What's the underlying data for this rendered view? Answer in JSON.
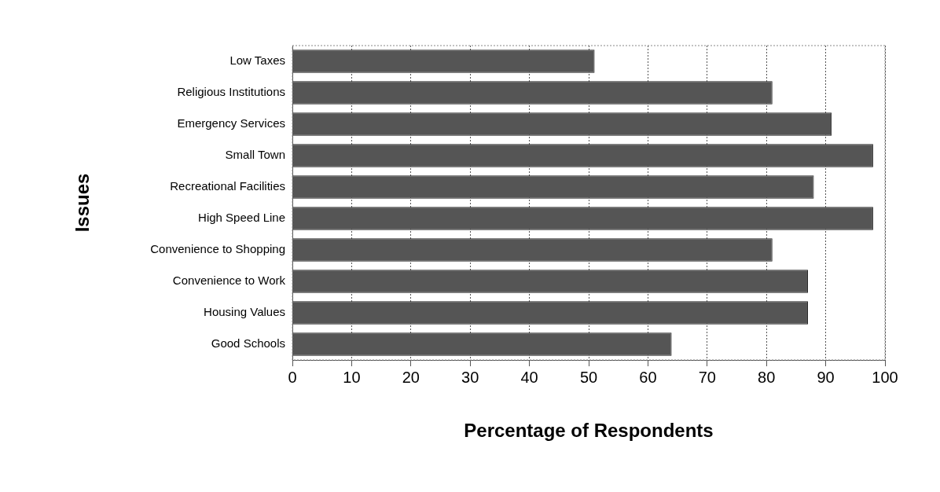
{
  "chart_data": {
    "type": "bar",
    "orientation": "horizontal",
    "xlabel": "Percentage of Respondents",
    "ylabel": "Issues",
    "categories": [
      "Low Taxes",
      "Religious Institutions",
      "Emergency Services",
      "Small Town",
      "Recreational Facilities",
      "High Speed Line",
      "Convenience to Shopping",
      "Convenience to Work",
      "Housing Values",
      "Good Schools"
    ],
    "values": [
      51,
      81,
      91,
      98,
      88,
      98,
      81,
      87,
      87,
      64
    ],
    "color": "#555555",
    "xlim": [
      0,
      100
    ],
    "xticks": [
      0,
      10,
      20,
      30,
      40,
      50,
      60,
      70,
      80,
      90,
      100
    ],
    "grid": "x",
    "legend": false
  }
}
